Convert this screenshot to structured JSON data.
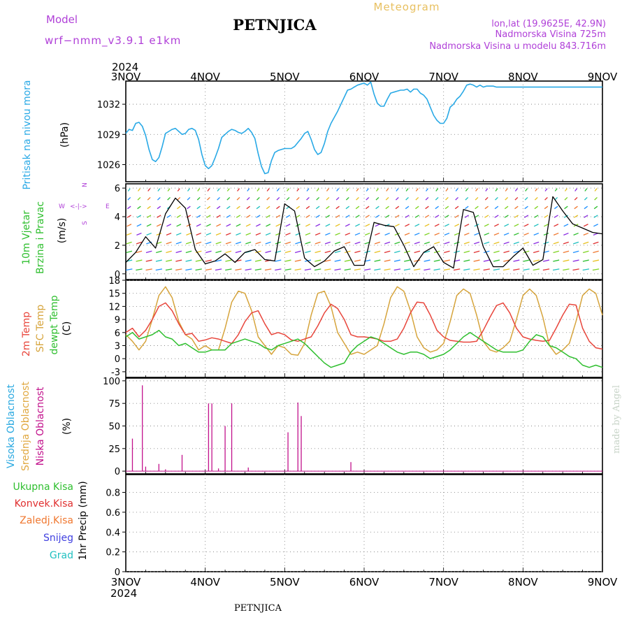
{
  "header": {
    "model_label": "Model",
    "model_name": "wrf−nmm_v3.9.1  e1km",
    "station_title": "PETNJICA",
    "meteogram_label": "Meteogram",
    "location": "lon,lat (19.9625E, 42.9N)",
    "elevation": "Nadmorska Visina 725m",
    "model_elevation": "Nadmorska Visina u modelu 843.716m",
    "year": "2024"
  },
  "footer": {
    "station": "PETNJICA",
    "year": "2024"
  },
  "watermark": "made by Angel",
  "time_axis": {
    "labels": [
      "3NOV",
      "4NOV",
      "5NOV",
      "6NOV",
      "7NOV",
      "8NOV",
      "9NOV"
    ],
    "range_hours": [
      0,
      144
    ]
  },
  "colors": {
    "pressure": "#29a9e6",
    "wind_speed": "#000000",
    "gust": "#e03030",
    "t2m": "#e8463c",
    "sfc_temp": "#d6a43c",
    "dewpoint": "#2fbf2f",
    "high_cloud": "#28a8e0",
    "mid_cloud": "#e0a840",
    "low_cloud": "#c2128c",
    "total_precip": "#2fbf2f",
    "conv_precip": "#e03030",
    "frozen_precip": "#f07830",
    "snow": "#4040e0",
    "graupel": "#20c0c0"
  },
  "chart_data": [
    {
      "type": "line",
      "panel": "pressure",
      "ylabel_left": "Pritisak na nivou mora",
      "unit": "(hPa)",
      "yticks": [
        1026,
        1029,
        1032
      ],
      "ylim": [
        1024.3,
        1034.3
      ],
      "series": [
        {
          "name": "Pritisak na nivou mora",
          "x": [
            0,
            1,
            2,
            3,
            4,
            5,
            6,
            7,
            8,
            9,
            10,
            11,
            12,
            13,
            14,
            15,
            16,
            17,
            18,
            19,
            20,
            21,
            22,
            23,
            24,
            25,
            26,
            27,
            28,
            29,
            30,
            31,
            32,
            33,
            34,
            35,
            36,
            37,
            38,
            39,
            40,
            41,
            42,
            43,
            44,
            45,
            46,
            47,
            48,
            49,
            50,
            51,
            52,
            53,
            54,
            55,
            56,
            57,
            58,
            59,
            60,
            61,
            62,
            63,
            64,
            65,
            66,
            67,
            68,
            69,
            70,
            71,
            72,
            73,
            74,
            75,
            76,
            77,
            78,
            79,
            80,
            81,
            82,
            83,
            84,
            85,
            86,
            87,
            88,
            89,
            90,
            91,
            92,
            93,
            94,
            95,
            96,
            97,
            98,
            99,
            100,
            101,
            102,
            103,
            104,
            105,
            106,
            107,
            108,
            109,
            110,
            111,
            112,
            113,
            114,
            115,
            116,
            117,
            118,
            119,
            120,
            121,
            122,
            123,
            124,
            125,
            126,
            127,
            128,
            129,
            130,
            131,
            132,
            133,
            134,
            135,
            136,
            137,
            138,
            139,
            140,
            141,
            142,
            143,
            144
          ],
          "y": [
            1029.1,
            1029.5,
            1029.4,
            1030.1,
            1030.2,
            1029.8,
            1028.9,
            1027.5,
            1026.5,
            1026.3,
            1026.7,
            1027.8,
            1029.1,
            1029.3,
            1029.5,
            1029.6,
            1029.3,
            1029.0,
            1029.1,
            1029.5,
            1029.6,
            1029.4,
            1028.5,
            1027.0,
            1025.9,
            1025.6,
            1025.9,
            1026.7,
            1027.6,
            1028.7,
            1029.0,
            1029.3,
            1029.5,
            1029.4,
            1029.2,
            1029.1,
            1029.3,
            1029.6,
            1029.2,
            1028.6,
            1027.1,
            1025.8,
            1025.1,
            1025.2,
            1026.4,
            1027.2,
            1027.4,
            1027.5,
            1027.6,
            1027.6,
            1027.6,
            1027.8,
            1028.2,
            1028.6,
            1029.1,
            1029.3,
            1028.5,
            1027.5,
            1027.0,
            1027.2,
            1028.1,
            1029.3,
            1030.1,
            1030.7,
            1031.3,
            1032.0,
            1032.7,
            1033.4,
            1033.5,
            1033.7,
            1033.9,
            1034.0,
            1034.1,
            1033.9,
            1034.2,
            1033.0,
            1032.1,
            1031.8,
            1031.8,
            1032.5,
            1033.1,
            1033.2,
            1033.3,
            1033.4,
            1033.4,
            1033.5,
            1033.2,
            1033.5,
            1033.5,
            1033.1,
            1032.9,
            1032.5,
            1031.7,
            1030.9,
            1030.4,
            1030.1,
            1030.1,
            1030.6,
            1031.7,
            1032.0,
            1032.5,
            1032.8,
            1033.3,
            1033.9,
            1034.0,
            1033.9,
            1033.7,
            1033.9,
            1033.7,
            1033.8,
            1033.8,
            1033.8,
            1033.7,
            1033.7,
            1033.7,
            1033.7,
            1033.7,
            1033.7,
            1033.7,
            1033.7,
            1033.7,
            1033.7,
            1033.7,
            1033.7,
            1033.7,
            1033.7,
            1033.7,
            1033.7,
            1033.7,
            1033.7,
            1033.7,
            1033.7,
            1033.7,
            1033.7,
            1033.7,
            1033.7,
            1033.7,
            1033.7,
            1033.7,
            1033.7,
            1033.7,
            1033.7,
            1033.7,
            1033.7,
            1033.7
          ]
        }
      ]
    },
    {
      "type": "line",
      "panel": "wind",
      "ylabel_left": [
        "10m Vjetar",
        "Brzina i Pravac"
      ],
      "unit": "(m/s)",
      "compass": {
        "n": "N",
        "s": "S",
        "w": "W",
        "e": "E",
        "arrows": "<-|->"
      },
      "yticks": [
        0,
        2,
        4,
        6
      ],
      "ylim": [
        -0.4,
        6.3
      ],
      "series": [
        {
          "name": "wind speed",
          "x": [
            0,
            3,
            6,
            9,
            12,
            15,
            18,
            21,
            24,
            27,
            30,
            33,
            36,
            39,
            42,
            45,
            48,
            51,
            54,
            57,
            60,
            63,
            66,
            69,
            72,
            75,
            78,
            81,
            84,
            87,
            90,
            93,
            96,
            99,
            102,
            105,
            108,
            111,
            114,
            117,
            120,
            123,
            126,
            129,
            132,
            135,
            138,
            141,
            144
          ],
          "y": [
            0.8,
            1.5,
            2.6,
            1.8,
            4.2,
            5.3,
            4.6,
            1.7,
            0.7,
            0.9,
            1.4,
            0.8,
            1.5,
            1.7,
            1.0,
            0.9,
            4.9,
            4.4,
            1.1,
            0.5,
            0.9,
            1.6,
            1.9,
            0.6,
            0.6,
            3.6,
            3.4,
            3.3,
            2.0,
            0.5,
            1.5,
            1.9,
            0.8,
            0.4,
            4.5,
            4.3,
            1.9,
            0.5,
            0.5,
            1.2,
            1.8,
            0.6,
            1.0,
            5.4,
            4.4,
            3.5,
            3.2,
            2.9,
            2.8
          ]
        }
      ]
    },
    {
      "type": "line",
      "panel": "temperature",
      "ylabel_left": [
        "2m Temp",
        "SFC Temp",
        "dewpt Temp"
      ],
      "unit": "(C)",
      "yticks": [
        -3,
        0,
        3,
        6,
        9,
        12,
        15,
        18
      ],
      "ylim": [
        -4.3,
        18
      ],
      "series": [
        {
          "name": "2m Temp",
          "x": [
            0,
            2,
            4,
            6,
            8,
            10,
            12,
            14,
            16,
            18,
            20,
            22,
            24,
            26,
            28,
            30,
            32,
            34,
            36,
            38,
            40,
            42,
            44,
            46,
            48,
            50,
            52,
            54,
            56,
            58,
            60,
            62,
            64,
            66,
            68,
            70,
            72,
            74,
            76,
            78,
            80,
            82,
            84,
            86,
            88,
            90,
            92,
            94,
            96,
            98,
            100,
            102,
            104,
            106,
            108,
            110,
            112,
            114,
            116,
            118,
            120,
            122,
            124,
            126,
            128,
            130,
            132,
            134,
            136,
            138,
            140,
            142,
            144
          ],
          "y": [
            6.0,
            7.0,
            5.0,
            6.5,
            9.0,
            12.0,
            12.8,
            11.0,
            8.0,
            5.5,
            5.8,
            4.0,
            4.3,
            4.8,
            4.5,
            4.0,
            3.5,
            5.5,
            8.5,
            10.5,
            11.0,
            8.0,
            5.5,
            6.0,
            5.5,
            4.3,
            4.0,
            4.5,
            5.0,
            7.5,
            10.5,
            12.5,
            11.5,
            9.0,
            5.5,
            5.0,
            5.0,
            4.8,
            4.5,
            4.0,
            4.0,
            4.5,
            7.0,
            10.5,
            13.0,
            12.8,
            10.0,
            6.5,
            5.0,
            4.2,
            4.0,
            3.8,
            3.8,
            4.0,
            6.5,
            9.5,
            12.2,
            12.8,
            10.5,
            7.0,
            5.0,
            4.5,
            4.2,
            4.0,
            4.2,
            7.0,
            10.0,
            12.5,
            12.3,
            7.0,
            4.0,
            2.5,
            2.2
          ]
        },
        {
          "name": "SFC Temp",
          "x": [
            0,
            2,
            4,
            6,
            8,
            10,
            12,
            14,
            16,
            18,
            20,
            22,
            24,
            26,
            28,
            30,
            32,
            34,
            36,
            38,
            40,
            42,
            44,
            46,
            48,
            50,
            52,
            54,
            56,
            58,
            60,
            62,
            64,
            66,
            68,
            70,
            72,
            74,
            76,
            78,
            80,
            82,
            84,
            86,
            88,
            90,
            92,
            94,
            96,
            98,
            100,
            102,
            104,
            106,
            108,
            110,
            112,
            114,
            116,
            118,
            120,
            122,
            124,
            126,
            128,
            130,
            132,
            134,
            136,
            138,
            140,
            142,
            144
          ],
          "y": [
            5.5,
            4.0,
            2.0,
            4.0,
            9.0,
            14.5,
            16.5,
            14.0,
            8.5,
            5.5,
            4.5,
            2.0,
            3.0,
            2.0,
            2.0,
            7.0,
            13.0,
            15.5,
            15.0,
            11.0,
            5.0,
            3.0,
            1.0,
            3.0,
            2.5,
            1.0,
            0.8,
            3.5,
            10.0,
            15.0,
            15.5,
            12.0,
            6.0,
            3.5,
            1.0,
            1.5,
            1.0,
            2.0,
            3.0,
            8.0,
            14.0,
            16.5,
            15.5,
            11.0,
            5.0,
            2.5,
            1.5,
            2.0,
            3.5,
            8.5,
            14.5,
            16.0,
            15.0,
            10.0,
            4.0,
            2.0,
            1.5,
            2.5,
            4.0,
            9.0,
            14.5,
            16.0,
            14.5,
            9.5,
            3.0,
            1.0,
            2.0,
            3.5,
            8.5,
            14.5,
            16.0,
            15.0,
            10.0
          ]
        },
        {
          "name": "dewpt Temp",
          "x": [
            0,
            2,
            4,
            6,
            8,
            10,
            12,
            14,
            16,
            18,
            20,
            22,
            24,
            26,
            28,
            30,
            32,
            34,
            36,
            38,
            40,
            42,
            44,
            46,
            48,
            50,
            52,
            54,
            56,
            58,
            60,
            62,
            64,
            66,
            68,
            70,
            72,
            74,
            76,
            78,
            80,
            82,
            84,
            86,
            88,
            90,
            92,
            94,
            96,
            98,
            100,
            102,
            104,
            106,
            108,
            110,
            112,
            114,
            116,
            118,
            120,
            122,
            124,
            126,
            128,
            130,
            132,
            134,
            136,
            138,
            140,
            142,
            144
          ],
          "y": [
            5.0,
            6.0,
            4.5,
            5.0,
            5.5,
            6.5,
            5.0,
            4.5,
            3.0,
            3.5,
            2.5,
            1.5,
            1.5,
            2.0,
            2.0,
            2.0,
            3.5,
            4.0,
            4.5,
            4.0,
            3.5,
            2.5,
            2.0,
            3.0,
            3.5,
            4.0,
            4.5,
            3.5,
            2.0,
            0.5,
            -1.0,
            -2.0,
            -1.5,
            -1.0,
            1.5,
            3.0,
            4.0,
            5.0,
            4.5,
            3.5,
            2.5,
            1.5,
            1.0,
            1.5,
            1.5,
            1.0,
            0.0,
            0.5,
            1.0,
            2.0,
            3.5,
            5.0,
            6.0,
            5.0,
            4.0,
            3.0,
            2.0,
            1.5,
            1.5,
            1.5,
            2.0,
            4.0,
            5.5,
            5.0,
            3.0,
            2.5,
            1.5,
            0.5,
            0.0,
            -1.5,
            -2.0,
            -1.5,
            -2.0
          ]
        }
      ]
    },
    {
      "type": "bar",
      "panel": "cloud",
      "ylabel_left": [
        "Visoka Oblacnost",
        "Srednja Oblacnost",
        "Niska Oblacnost"
      ],
      "unit": "(%)",
      "yticks": [
        0,
        25,
        50,
        75,
        100
      ],
      "ylim": [
        -3,
        103
      ],
      "series": [
        {
          "name": "Niska Oblacnost",
          "x": [
            2,
            5,
            6,
            10,
            12,
            17,
            25,
            26,
            28,
            30,
            32,
            37,
            49,
            52,
            53,
            68
          ],
          "values": [
            36,
            95,
            5,
            8,
            2,
            18,
            75,
            75,
            3,
            50,
            75,
            4,
            43,
            76,
            61,
            10
          ]
        }
      ]
    },
    {
      "type": "bar",
      "panel": "precip",
      "ylabel_left": [
        "Ukupna  Kisa",
        "Konvek.Kisa",
        "Zaledj.Kisa",
        "Snijeg",
        "Grad"
      ],
      "unit": "1hr Precip (mm)",
      "yticks": [
        0,
        0.2,
        0.4,
        0.6,
        0.8
      ],
      "ylim": [
        0,
        0.98
      ],
      "series": [
        {
          "name": "Ukupna  Kisa",
          "values": []
        },
        {
          "name": "Konvek.Kisa",
          "values": []
        },
        {
          "name": "Zaledj.Kisa",
          "values": []
        },
        {
          "name": "Snijeg",
          "values": []
        },
        {
          "name": "Grad",
          "values": []
        }
      ]
    }
  ]
}
